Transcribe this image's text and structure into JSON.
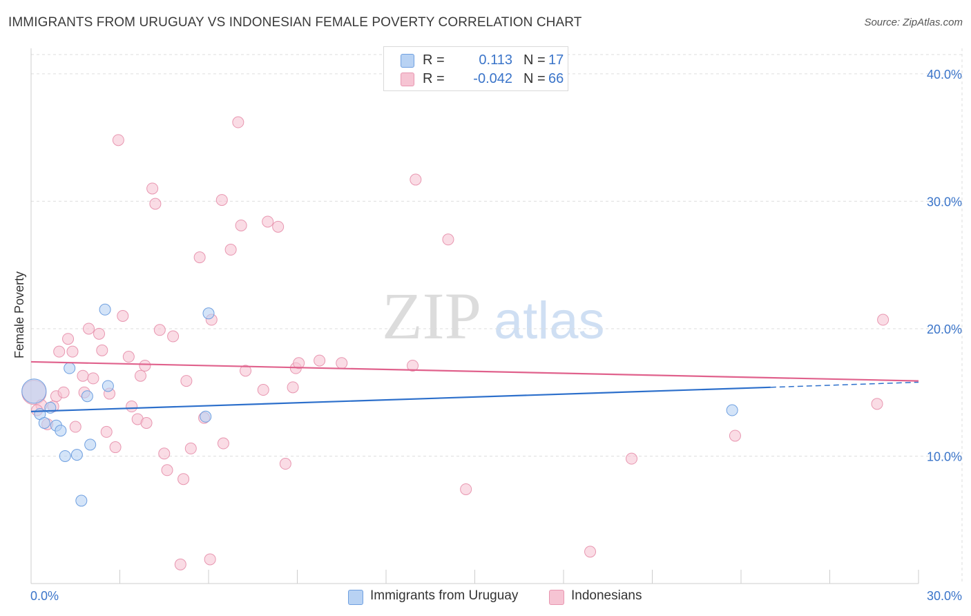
{
  "title": "IMMIGRANTS FROM URUGUAY VS INDONESIAN FEMALE POVERTY CORRELATION CHART",
  "source": "Source: ZipAtlas.com",
  "watermark": {
    "zip": "ZIP",
    "atlas": "atlas"
  },
  "legend_top": [
    {
      "r_label": "R =",
      "r_value": "0.113",
      "n_label": "N =",
      "n_value": "17"
    },
    {
      "r_label": "R =",
      "r_value": "-0.042",
      "n_label": "N =",
      "n_value": "66"
    }
  ],
  "legend_bottom": [
    {
      "label": "Immigrants from Uruguay"
    },
    {
      "label": "Indonesians"
    }
  ],
  "colors": {
    "blue_fill": "#b8d2f3",
    "blue_stroke": "#6e9fe0",
    "blue_line": "#2c6fcb",
    "pink_fill": "#f6c4d3",
    "pink_stroke": "#e896b0",
    "pink_line": "#e0618c",
    "axis_text": "#3a74c9",
    "grid": "#dddddd"
  },
  "chart_data": {
    "type": "scatter",
    "title": "IMMIGRANTS FROM URUGUAY VS INDONESIAN FEMALE POVERTY CORRELATION CHART",
    "xlabel": "",
    "ylabel": "Female Poverty",
    "xlim": [
      0,
      30
    ],
    "ylim": [
      0,
      42
    ],
    "x_tick_labels": [
      "0.0%",
      "30.0%"
    ],
    "y_ticks": [
      10,
      20,
      30,
      40
    ],
    "y_tick_labels": [
      "10.0%",
      "20.0%",
      "30.0%",
      "40.0%"
    ],
    "grid": true,
    "series": [
      {
        "name": "Immigrants from Uruguay",
        "r": 0.113,
        "n": 17,
        "trend": {
          "x0": 0,
          "y0": 13.5,
          "x1": 25.0,
          "y1": 15.4,
          "dash_to_x": 30,
          "dash_to_y": 15.8
        },
        "points": [
          [
            0.1,
            15.1,
            2.2
          ],
          [
            0.3,
            13.3,
            1
          ],
          [
            0.45,
            12.6,
            1
          ],
          [
            0.65,
            13.8,
            1
          ],
          [
            0.85,
            12.4,
            1
          ],
          [
            1.0,
            12.0,
            1
          ],
          [
            1.15,
            10.0,
            1
          ],
          [
            1.3,
            16.9,
            1
          ],
          [
            1.55,
            10.1,
            1
          ],
          [
            1.7,
            6.5,
            1
          ],
          [
            1.9,
            14.7,
            1
          ],
          [
            2.0,
            10.9,
            1
          ],
          [
            2.5,
            21.5,
            1
          ],
          [
            2.6,
            15.5,
            1
          ],
          [
            5.9,
            13.1,
            1
          ],
          [
            6.0,
            21.2,
            1
          ],
          [
            23.7,
            13.6,
            1
          ]
        ]
      },
      {
        "name": "Indonesians",
        "r": -0.042,
        "n": 66,
        "trend": {
          "x0": 0,
          "y0": 17.4,
          "x1": 30,
          "y1": 15.9
        },
        "points": [
          [
            0.1,
            15.0,
            2.2
          ],
          [
            0.35,
            14.0,
            1
          ],
          [
            0.55,
            12.5,
            1
          ],
          [
            0.75,
            13.9,
            1
          ],
          [
            0.85,
            14.7,
            1
          ],
          [
            0.95,
            18.2,
            1
          ],
          [
            1.1,
            15.0,
            1
          ],
          [
            1.25,
            19.2,
            1
          ],
          [
            1.4,
            18.2,
            1
          ],
          [
            1.5,
            12.3,
            1
          ],
          [
            1.75,
            16.3,
            1
          ],
          [
            1.8,
            15.0,
            1
          ],
          [
            1.95,
            20.0,
            1
          ],
          [
            2.1,
            16.1,
            1
          ],
          [
            2.3,
            19.6,
            1
          ],
          [
            2.4,
            18.3,
            1
          ],
          [
            2.55,
            11.9,
            1
          ],
          [
            2.65,
            14.9,
            1
          ],
          [
            2.85,
            10.7,
            1
          ],
          [
            2.95,
            34.8,
            1
          ],
          [
            3.1,
            21.0,
            1
          ],
          [
            3.3,
            17.8,
            1
          ],
          [
            3.4,
            13.9,
            1
          ],
          [
            3.6,
            12.9,
            1
          ],
          [
            3.7,
            16.3,
            1
          ],
          [
            3.85,
            17.1,
            1
          ],
          [
            3.9,
            12.6,
            1
          ],
          [
            4.1,
            31.0,
            1
          ],
          [
            4.2,
            29.8,
            1
          ],
          [
            4.35,
            19.9,
            1
          ],
          [
            4.5,
            10.2,
            1
          ],
          [
            4.6,
            8.9,
            1
          ],
          [
            4.8,
            19.4,
            1
          ],
          [
            5.05,
            1.5,
            1
          ],
          [
            5.15,
            8.2,
            1
          ],
          [
            5.25,
            15.9,
            1
          ],
          [
            5.4,
            10.6,
            1
          ],
          [
            5.7,
            25.6,
            1
          ],
          [
            5.85,
            13.0,
            1
          ],
          [
            6.05,
            1.9,
            1
          ],
          [
            6.1,
            20.7,
            1
          ],
          [
            6.45,
            30.1,
            1
          ],
          [
            6.5,
            11.0,
            1
          ],
          [
            6.75,
            26.2,
            1
          ],
          [
            7.0,
            36.2,
            1
          ],
          [
            7.1,
            28.1,
            1
          ],
          [
            7.25,
            16.7,
            1
          ],
          [
            7.85,
            15.2,
            1
          ],
          [
            8.0,
            28.4,
            1
          ],
          [
            8.35,
            28.0,
            1
          ],
          [
            8.6,
            9.4,
            1
          ],
          [
            8.85,
            15.4,
            1
          ],
          [
            8.95,
            16.9,
            1
          ],
          [
            9.05,
            17.3,
            1
          ],
          [
            9.75,
            17.5,
            1
          ],
          [
            10.5,
            17.3,
            1
          ],
          [
            13.0,
            31.7,
            1
          ],
          [
            12.9,
            17.1,
            1
          ],
          [
            14.1,
            27.0,
            1
          ],
          [
            14.7,
            7.4,
            1
          ],
          [
            18.9,
            2.5,
            1
          ],
          [
            20.3,
            9.8,
            1
          ],
          [
            23.8,
            11.6,
            1
          ],
          [
            28.6,
            14.1,
            1
          ],
          [
            28.8,
            20.7,
            1
          ],
          [
            0.2,
            13.6,
            1
          ]
        ]
      }
    ]
  }
}
